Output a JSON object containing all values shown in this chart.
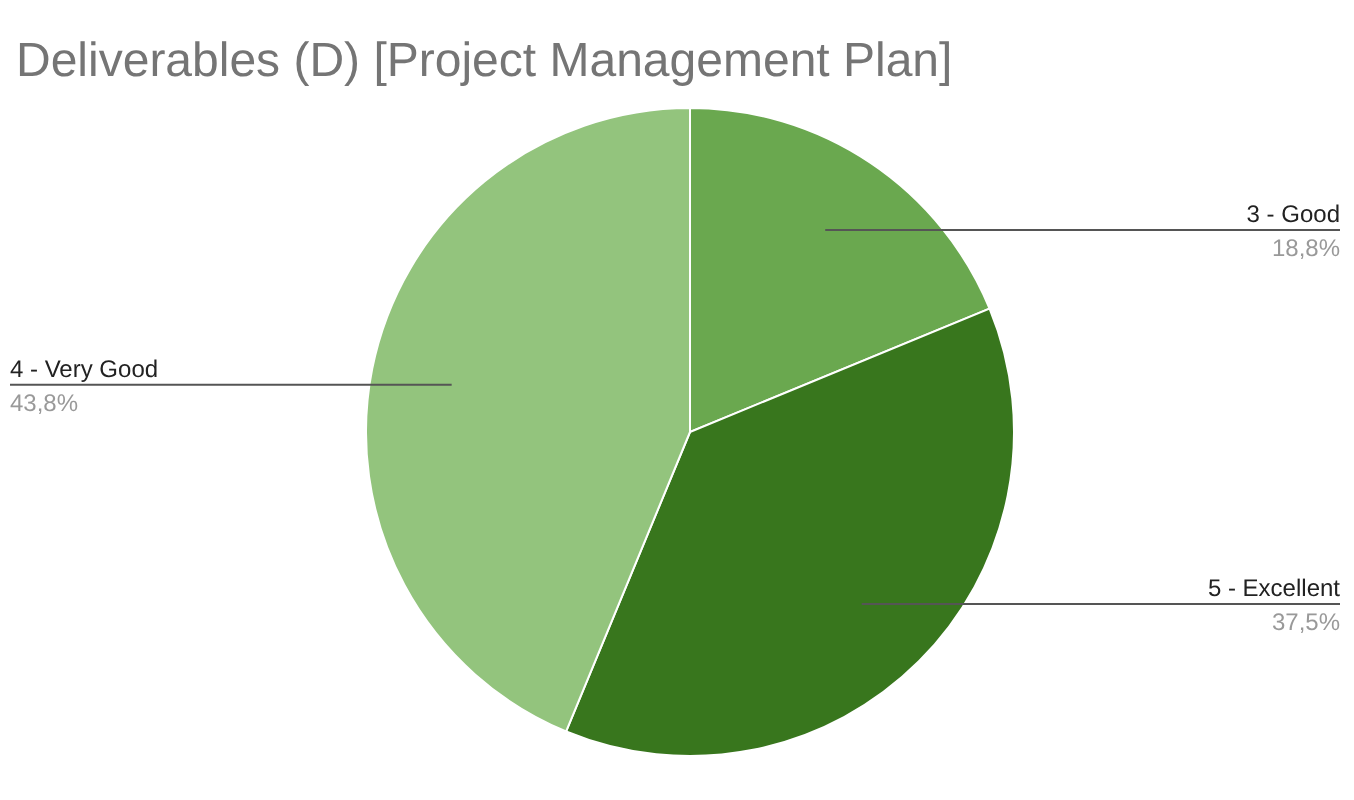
{
  "chart_data": {
    "type": "pie",
    "title": "Deliverables (D) [Project Management Plan]",
    "categories": [
      "3 - Good",
      "5 - Excellent",
      "4 - Very Good"
    ],
    "values": [
      18.8,
      37.5,
      43.8
    ],
    "value_labels": [
      "18,8%",
      "37,5%",
      "43,8%"
    ],
    "colors": [
      "#6aa84f",
      "#38761d",
      "#93c47d"
    ]
  }
}
